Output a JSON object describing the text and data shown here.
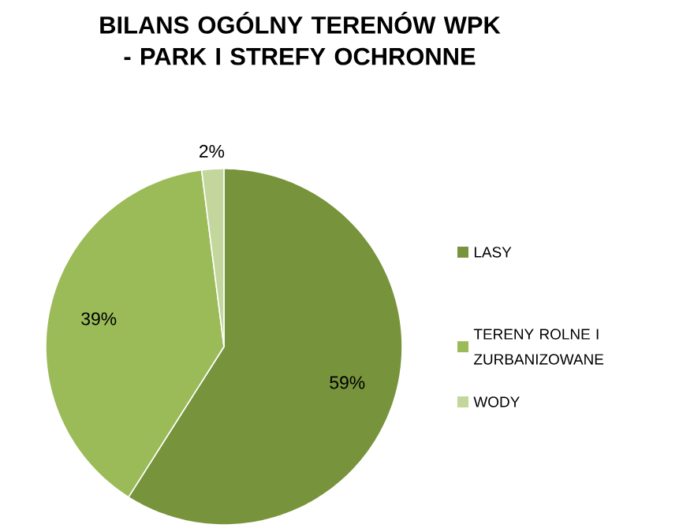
{
  "chart_data": {
    "type": "pie",
    "title": "BILANS OGÓLNY TERENÓW WPK - PARK I STREFY OCHRONNE",
    "categories": [
      "LASY",
      "TERENY ROLNE I ZURBANIZOWANE",
      "WODY"
    ],
    "values": [
      59,
      39,
      2
    ],
    "value_labels": [
      "59%",
      "39%",
      "2%"
    ],
    "colors": [
      "#77933c",
      "#9bbb59",
      "#c3d69b"
    ],
    "legend": "right"
  }
}
